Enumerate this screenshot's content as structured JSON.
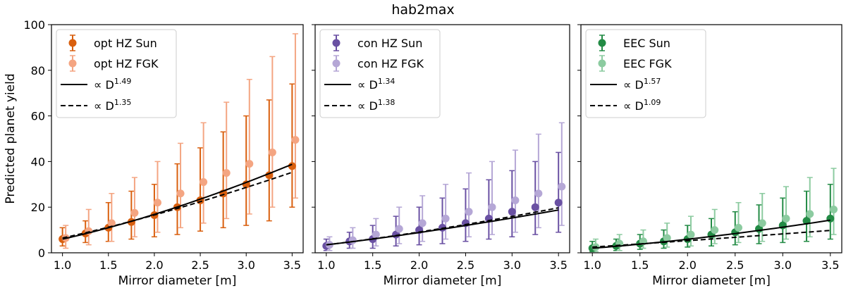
{
  "figure": {
    "suptitle": "hab2max"
  },
  "chart_data": [
    {
      "type": "scatter",
      "xlabel": "Mirror diameter [m]",
      "ylabel": "Predicted planet yield",
      "xlim": [
        0.88,
        3.62
      ],
      "ylim": [
        0,
        100
      ],
      "xticks": [
        "1.0",
        "1.5",
        "2.0",
        "2.5",
        "3.0",
        "3.5"
      ],
      "yticks": [
        "0",
        "20",
        "40",
        "60",
        "80",
        "100"
      ],
      "show_ytick_labels": true,
      "legend": "upper-left",
      "series": [
        {
          "name": "opt HZ Sun",
          "color": "#d95f0e",
          "alpha": 1.0,
          "offset": 0,
          "x": [
            1.0,
            1.25,
            1.5,
            1.75,
            2.0,
            2.25,
            2.5,
            2.75,
            3.0,
            3.25,
            3.5
          ],
          "y": [
            6,
            8.5,
            11,
            13.5,
            16.5,
            20,
            23,
            26,
            30,
            34,
            38
          ],
          "err_low": [
            3,
            4.5,
            5,
            6,
            7,
            8,
            9.5,
            11,
            12,
            14,
            20
          ],
          "err_high": [
            11,
            14,
            22,
            27,
            30,
            39,
            46,
            53,
            60,
            67,
            74
          ]
        },
        {
          "name": "opt HZ FGK",
          "color": "#f4a582",
          "alpha": 1.0,
          "offset": 0.035,
          "x": [
            1.0,
            1.25,
            1.5,
            1.75,
            2.0,
            2.25,
            2.5,
            2.75,
            3.0,
            3.25,
            3.5
          ],
          "y": [
            6.5,
            9.5,
            13,
            17.5,
            22,
            26,
            31,
            35,
            39,
            44,
            49.5
          ],
          "err_low": [
            2,
            3.5,
            5,
            7,
            9,
            11,
            13,
            15,
            17,
            20,
            24
          ],
          "err_high": [
            12,
            19,
            26,
            33,
            40,
            48,
            57,
            66,
            76,
            86,
            96
          ]
        }
      ],
      "fits": [
        {
          "label": "∝ D",
          "exponent": "1.49",
          "style": "solid",
          "y_at_1": 6,
          "power": 1.49
        },
        {
          "label": "∝ D",
          "exponent": "1.35",
          "style": "dashed",
          "y_at_1": 6.5,
          "power": 1.35
        }
      ]
    },
    {
      "type": "scatter",
      "xlabel": "Mirror diameter [m]",
      "ylabel": "",
      "xlim": [
        0.88,
        3.62
      ],
      "ylim": [
        0,
        100
      ],
      "xticks": [
        "1.0",
        "1.5",
        "2.0",
        "2.5",
        "3.0",
        "3.5"
      ],
      "yticks": [
        "0",
        "20",
        "40",
        "60",
        "80",
        "100"
      ],
      "show_ytick_labels": false,
      "legend": "upper-left",
      "series": [
        {
          "name": "con HZ Sun",
          "color": "#6a51a3",
          "alpha": 1.0,
          "offset": 0,
          "x": [
            1.0,
            1.25,
            1.5,
            1.75,
            2.0,
            2.25,
            2.5,
            2.75,
            3.0,
            3.25,
            3.5
          ],
          "y": [
            3,
            5,
            6,
            8,
            10,
            11,
            13,
            15,
            18,
            20,
            22
          ],
          "err_low": [
            1,
            2,
            2,
            3,
            3.5,
            4,
            5,
            6,
            7,
            8,
            9
          ],
          "err_high": [
            6,
            9,
            12,
            16,
            20,
            24,
            28,
            32,
            36,
            40,
            44
          ]
        },
        {
          "name": "con HZ FGK",
          "color": "#b5a7d6",
          "alpha": 1.0,
          "offset": 0.035,
          "x": [
            1.0,
            1.25,
            1.5,
            1.75,
            2.0,
            2.25,
            2.5,
            2.75,
            3.0,
            3.25,
            3.5
          ],
          "y": [
            3.5,
            5.5,
            8,
            10.5,
            13,
            15,
            18,
            20,
            23,
            26,
            29
          ],
          "err_low": [
            1,
            2,
            3,
            4,
            5,
            6,
            7,
            8,
            9,
            11,
            12
          ],
          "err_high": [
            7,
            11,
            15,
            20,
            25,
            30,
            35,
            40,
            45,
            52,
            57
          ]
        }
      ],
      "fits": [
        {
          "label": "∝ D",
          "exponent": "1.34",
          "style": "solid",
          "y_at_1": 3.5,
          "power": 1.34
        },
        {
          "label": "∝ D",
          "exponent": "1.38",
          "style": "dashed",
          "y_at_1": 3.5,
          "power": 1.38
        }
      ]
    },
    {
      "type": "scatter",
      "xlabel": "Mirror diameter [m]",
      "ylabel": "",
      "xlim": [
        0.88,
        3.62
      ],
      "ylim": [
        0,
        100
      ],
      "xticks": [
        "1.0",
        "1.5",
        "2.0",
        "2.5",
        "3.0",
        "3.5"
      ],
      "yticks": [
        "0",
        "20",
        "40",
        "60",
        "80",
        "100"
      ],
      "show_ytick_labels": false,
      "legend": "upper-left",
      "series": [
        {
          "name": "EEC Sun",
          "color": "#238b45",
          "alpha": 1.0,
          "offset": 0,
          "x": [
            1.0,
            1.25,
            1.5,
            1.75,
            2.0,
            2.25,
            2.5,
            2.75,
            3.0,
            3.25,
            3.5
          ],
          "y": [
            2,
            3,
            4,
            5,
            6,
            8,
            9,
            10.5,
            12,
            14,
            15
          ],
          "err_low": [
            0.5,
            1,
            1.5,
            2,
            2.5,
            3,
            3.5,
            4,
            4.5,
            5,
            6
          ],
          "err_high": [
            5,
            6,
            8,
            10,
            12,
            15,
            18,
            21,
            24,
            27,
            30
          ]
        },
        {
          "name": "EEC FGK",
          "color": "#8ccba0",
          "alpha": 1.0,
          "offset": 0.035,
          "x": [
            1.0,
            1.25,
            1.5,
            1.75,
            2.0,
            2.25,
            2.5,
            2.75,
            3.0,
            3.25,
            3.5
          ],
          "y": [
            2.5,
            4,
            5,
            6.5,
            8,
            10,
            11,
            13,
            15,
            17,
            19
          ],
          "err_low": [
            0.5,
            1,
            2,
            2.5,
            3,
            4,
            4.5,
            5,
            6,
            7,
            8
          ],
          "err_high": [
            6,
            8,
            10,
            13,
            16,
            19,
            22,
            26,
            29,
            33,
            37
          ]
        }
      ],
      "fits": [
        {
          "label": "∝ D",
          "exponent": "1.57",
          "style": "solid",
          "y_at_1": 2,
          "power": 1.57
        },
        {
          "label": "∝ D",
          "exponent": "1.09",
          "style": "dashed",
          "y_at_1": 2.5,
          "power": 1.09
        }
      ]
    }
  ]
}
